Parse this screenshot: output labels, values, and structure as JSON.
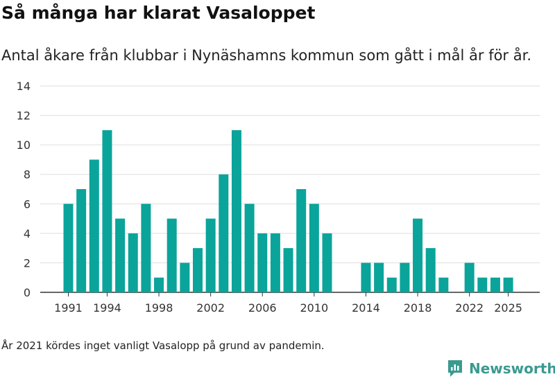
{
  "header": {
    "title": "Så många har klarat Vasaloppet",
    "subtitle": "Antal åkare från klubbar i Nynäshamns kommun som gått i mål år för år."
  },
  "footer": {
    "note": "År 2021 kördes inget vanligt Vasalopp på grund av pandemin.",
    "brand": "Newsworthy",
    "brand_icon": "newsworthy-logo-icon"
  },
  "colors": {
    "bar": "#0aa49a",
    "grid": "#dddddd",
    "axis": "#333333",
    "brand": "#3a9a8f"
  },
  "chart_data": {
    "type": "bar",
    "title": "Så många har klarat Vasaloppet",
    "xlabel": "",
    "ylabel": "",
    "ylim": [
      0,
      14
    ],
    "yticks": [
      0,
      2,
      4,
      6,
      8,
      10,
      12,
      14
    ],
    "xticks": [
      1991,
      1994,
      1998,
      2002,
      2006,
      2010,
      2014,
      2018,
      2022,
      2025
    ],
    "x": [
      1991,
      1992,
      1993,
      1994,
      1995,
      1996,
      1997,
      1998,
      1999,
      2000,
      2001,
      2002,
      2003,
      2004,
      2005,
      2006,
      2007,
      2008,
      2009,
      2010,
      2011,
      2014,
      2015,
      2016,
      2017,
      2018,
      2019,
      2020,
      2022,
      2023,
      2024,
      2025
    ],
    "values": [
      6,
      7,
      9,
      11,
      5,
      4,
      6,
      1,
      5,
      2,
      3,
      5,
      8,
      11,
      6,
      4,
      4,
      3,
      7,
      6,
      4,
      2,
      2,
      1,
      2,
      5,
      3,
      1,
      2,
      1,
      1,
      1
    ]
  }
}
